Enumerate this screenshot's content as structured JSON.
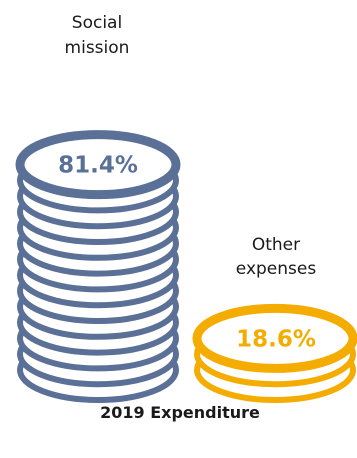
{
  "chart_data": {
    "type": "bar",
    "title": "2019 Expenditure",
    "unit": "%",
    "categories": [
      [
        "Social",
        "mission"
      ],
      [
        "Other",
        "expenses"
      ]
    ],
    "values": [
      81.4,
      18.6
    ],
    "value_labels": [
      "81.4%",
      "18.6%"
    ],
    "colors": {
      "social": "#5a7097",
      "other": "#f5ac00"
    }
  }
}
